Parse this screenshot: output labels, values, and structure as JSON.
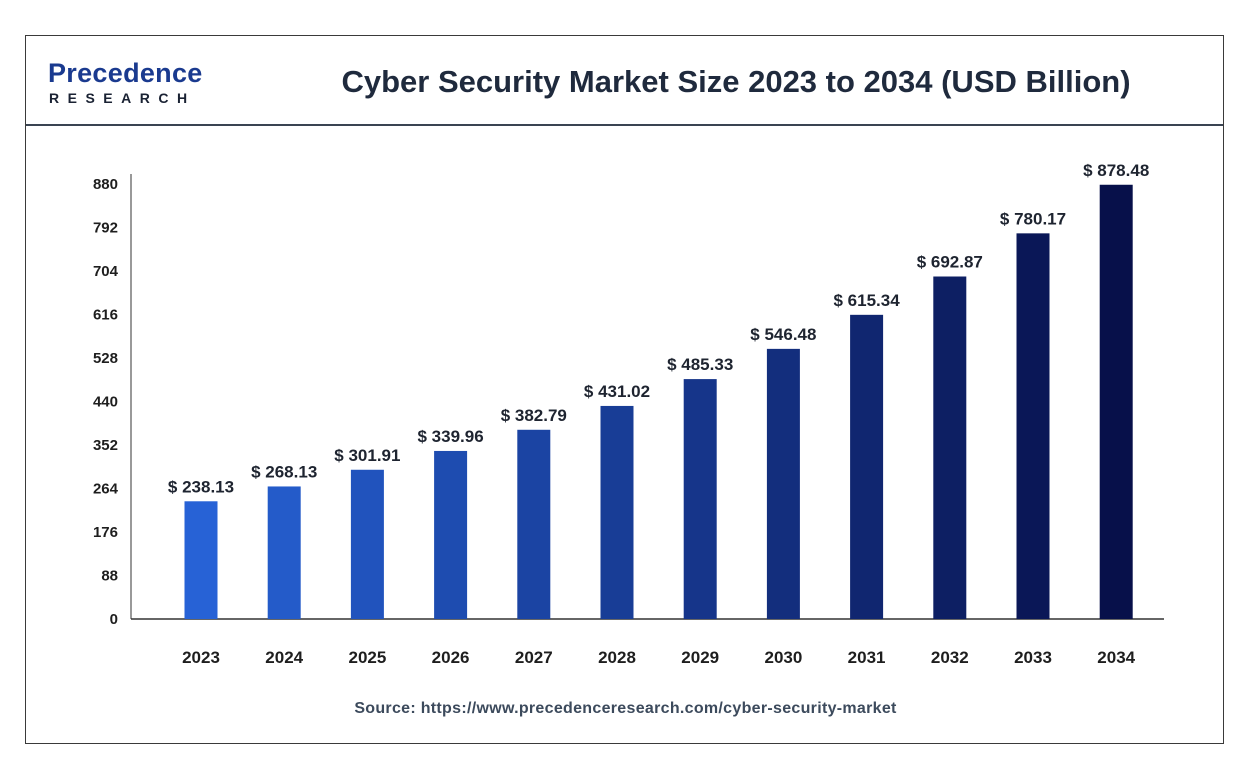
{
  "header": {
    "logo_word": "Precedence",
    "logo_sub": "RESEARCH",
    "title": "Cyber Security Market Size 2023 to 2034 (USD Billion)"
  },
  "footer": {
    "source": "Source: https://www.precedenceresearch.com/cyber-security-market"
  },
  "colors": {
    "bar_start": "#2762d6",
    "bar_end": "#07104a",
    "brand": "#1a3a8f",
    "axis": "#333333"
  },
  "chart_data": {
    "type": "bar",
    "title": "Cyber Security Market Size 2023 to 2034 (USD Billion)",
    "categories": [
      "2023",
      "2024",
      "2025",
      "2026",
      "2027",
      "2028",
      "2029",
      "2030",
      "2031",
      "2032",
      "2033",
      "2034"
    ],
    "values": [
      238.13,
      268.13,
      301.91,
      339.96,
      382.79,
      431.02,
      485.33,
      546.48,
      615.34,
      692.87,
      780.17,
      878.48
    ],
    "value_labels": [
      "$ 238.13",
      "$ 268.13",
      "$ 301.91",
      "$ 339.96",
      "$ 382.79",
      "$ 431.02",
      "$ 485.33",
      "$ 546.48",
      "$ 615.34",
      "$ 692.87",
      "$ 780.17",
      "$ 878.48"
    ],
    "yticks": [
      0,
      88,
      176,
      264,
      352,
      440,
      528,
      616,
      704,
      792,
      880
    ],
    "ylim": [
      0,
      880
    ],
    "xlabel": "",
    "ylabel": "",
    "grid": false,
    "legend": "none"
  }
}
